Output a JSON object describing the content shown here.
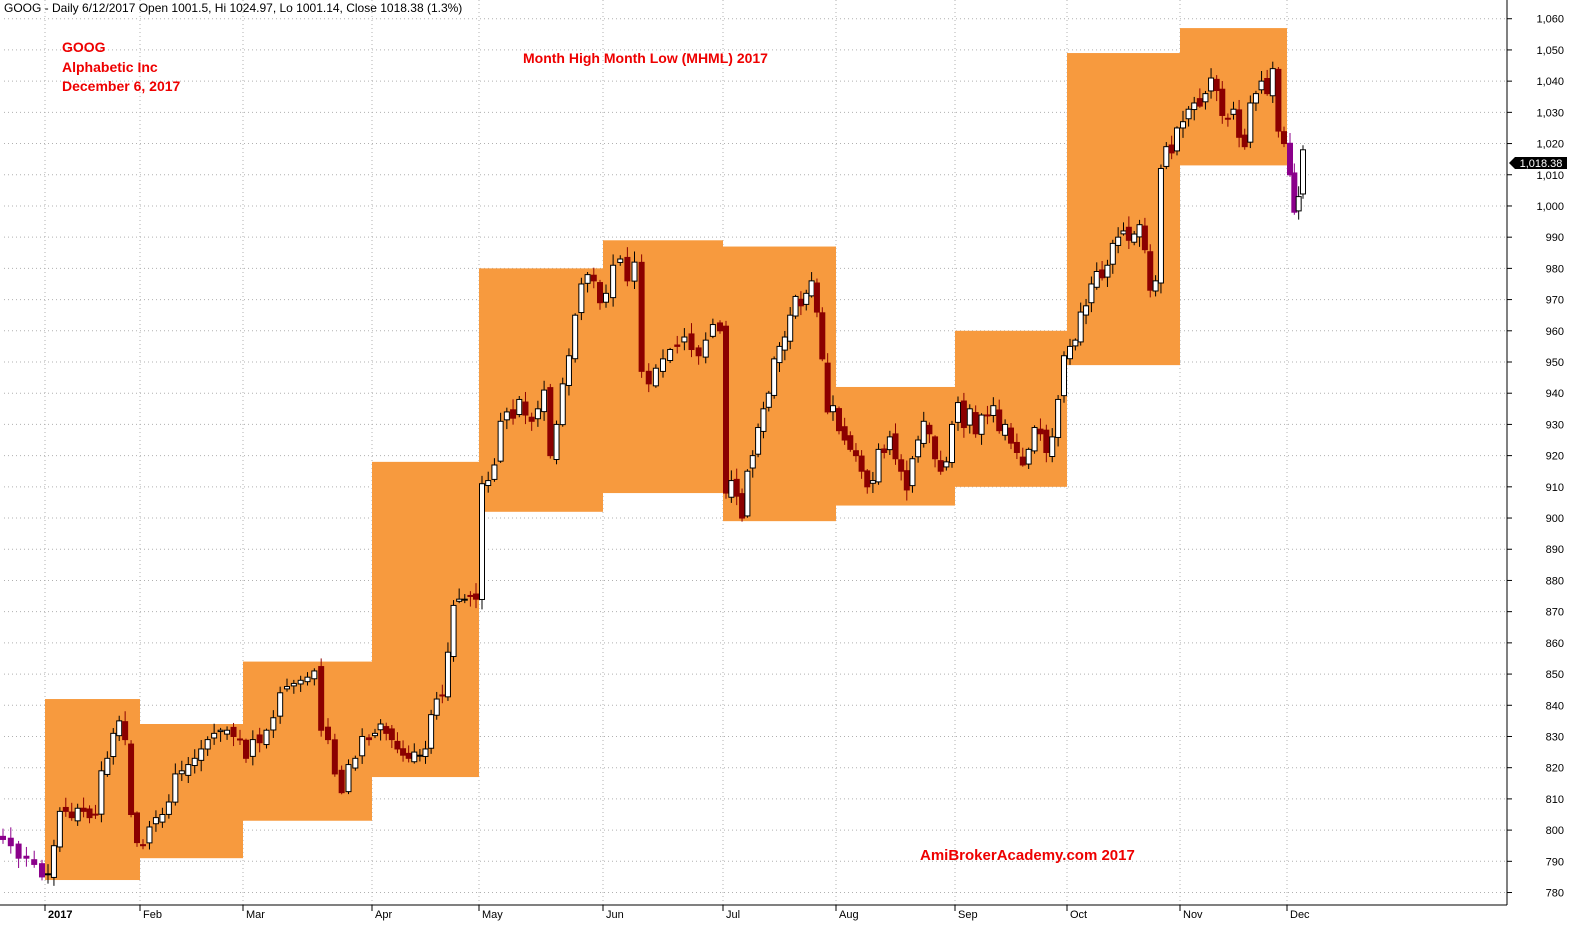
{
  "header": {
    "info": "GOOG - Daily 6/12/2017 Open 1001.5, Hi 1024.97, Lo 1001.14, Close 1018.38 (1.3%)"
  },
  "annotations": {
    "ticker": "GOOG",
    "company": "Alphabetic Inc",
    "date": "December 6, 2017",
    "title": "Month High Month Low (MHML) 2017",
    "watermark": "AmiBrokerAcademy.com  2017",
    "color": "#ee0000"
  },
  "last_price_label": "1,018.38",
  "colors": {
    "box": "#f79a3e",
    "up": "#ffffff",
    "down": "#8b0000",
    "pre_year": "#8b008b",
    "dec": "#8b008b",
    "grid": "#b0b0b0",
    "axis": "#000000"
  },
  "chart_data": {
    "type": "candlestick",
    "title": "Month High Month Low (MHML) 2017",
    "ylim": [
      776,
      1066
    ],
    "y_ticks": [
      "780",
      "790",
      "800",
      "810",
      "820",
      "830",
      "840",
      "850",
      "860",
      "870",
      "880",
      "890",
      "900",
      "910",
      "920",
      "930",
      "940",
      "950",
      "960",
      "970",
      "980",
      "990",
      "1,000",
      "1,010",
      "1,020",
      "1,030",
      "1,040",
      "1,050",
      "1,060"
    ],
    "grid": true,
    "x_labels": [
      "2017",
      "Feb",
      "Mar",
      "Apr",
      "May",
      "Jun",
      "Jul",
      "Aug",
      "Sep",
      "Oct",
      "Nov",
      "Dec"
    ],
    "month_boxes": [
      {
        "month": "Jan",
        "high": 842,
        "low": 784
      },
      {
        "month": "Feb",
        "high": 834,
        "low": 791
      },
      {
        "month": "Mar",
        "high": 854,
        "low": 803
      },
      {
        "month": "Apr",
        "high": 918,
        "low": 817
      },
      {
        "month": "May",
        "high": 980,
        "low": 902
      },
      {
        "month": "Jun",
        "high": 989,
        "low": 908
      },
      {
        "month": "Jul",
        "high": 987,
        "low": 899
      },
      {
        "month": "Aug",
        "high": 942,
        "low": 904
      },
      {
        "month": "Sep",
        "high": 960,
        "low": 910
      },
      {
        "month": "Oct",
        "high": 1049,
        "low": 949
      },
      {
        "month": "Nov",
        "high": 1057,
        "low": 1013
      }
    ],
    "months": [
      {
        "name": "Dec16",
        "closes": [
          797,
          795,
          791,
          791,
          789,
          785
        ]
      },
      {
        "name": "Jan",
        "closes": [
          786,
          795,
          806,
          806,
          804,
          807,
          806,
          804,
          805,
          819,
          823,
          831,
          835,
          829,
          805,
          796
        ]
      },
      {
        "name": "Feb",
        "closes": [
          795,
          801,
          804,
          805,
          809,
          818,
          819,
          821,
          823,
          826,
          829,
          831,
          832,
          832,
          830,
          829
        ]
      },
      {
        "name": "Mar",
        "closes": [
          823,
          829,
          828,
          832,
          836,
          844,
          846,
          847,
          848,
          849,
          851,
          832,
          829,
          818,
          812,
          821,
          823,
          830,
          829
        ]
      },
      {
        "name": "Apr",
        "closes": [
          831,
          834,
          831,
          829,
          826,
          824,
          823,
          825,
          824,
          826,
          837,
          842,
          843,
          857,
          872,
          874,
          874,
          875,
          874
        ]
      },
      {
        "name": "May",
        "closes": [
          911,
          912,
          917,
          931,
          934,
          932,
          938,
          933,
          931,
          935,
          941,
          920,
          930,
          943,
          952,
          965,
          975,
          978,
          976,
          969
        ]
      },
      {
        "name": "Jun",
        "closes": [
          972,
          981,
          983,
          976,
          982,
          947,
          943,
          948,
          951,
          954,
          955,
          958,
          954,
          952,
          957,
          962,
          960
        ]
      },
      {
        "name": "Jul",
        "closes": [
          908,
          912,
          907,
          900,
          915,
          920,
          929,
          935,
          940,
          951,
          955,
          958,
          965,
          971,
          968,
          972,
          976,
          966,
          951,
          934,
          936
        ]
      },
      {
        "name": "Aug",
        "closes": [
          928,
          925,
          922,
          920,
          915,
          910,
          912,
          922,
          921,
          926,
          919,
          915,
          909,
          919,
          925,
          931,
          927,
          919,
          915,
          918,
          930
        ]
      },
      {
        "name": "Sep",
        "closes": [
          937,
          929,
          935,
          927,
          933,
          933,
          936,
          928,
          930,
          924,
          921,
          917,
          922,
          929,
          927,
          921,
          926,
          938,
          952
        ]
      },
      {
        "name": "Oct",
        "closes": [
          955,
          957,
          966,
          968,
          975,
          979,
          977,
          981,
          988,
          990,
          992,
          989,
          991,
          994,
          986,
          973,
          976,
          1012,
          1019,
          1017,
          1025
        ]
      },
      {
        "name": "Nov",
        "closes": [
          1027,
          1031,
          1033,
          1032,
          1036,
          1041,
          1037,
          1029,
          1028,
          1031,
          1022,
          1019,
          1033,
          1036,
          1040,
          1036,
          1044,
          1024,
          1020
        ]
      },
      {
        "name": "Dec",
        "closes": [
          1010,
          998,
          1003,
          1018
        ]
      }
    ]
  }
}
